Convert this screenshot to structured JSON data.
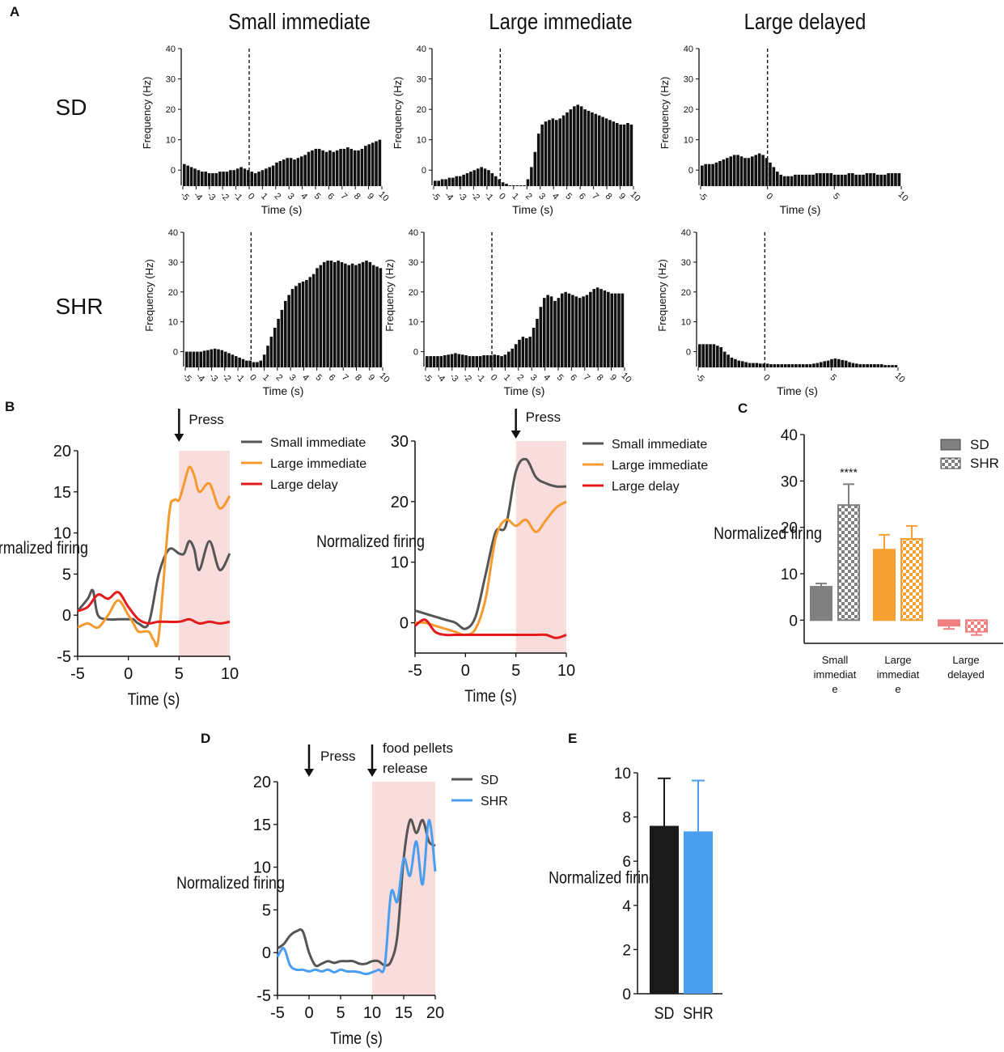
{
  "panel_a": {
    "letter": "A",
    "col_titles": [
      "Small immediate",
      "Large immediate",
      "Large delayed"
    ],
    "row_labels": [
      "SD",
      "SHR"
    ],
    "ylabel": "Frequency (Hz)",
    "xlabel": "Time (s)",
    "yticks": [
      "0",
      "10",
      "20",
      "30",
      "40"
    ],
    "xticks_full": [
      "-5",
      "-4",
      "-3",
      "-2",
      "-1",
      "0",
      "1",
      "2",
      "3",
      "4",
      "5",
      "6",
      "7",
      "8",
      "9",
      "10"
    ],
    "xticks_sparse": [
      "-5",
      "0",
      "5",
      "10"
    ]
  },
  "panel_b": {
    "letter": "B",
    "press_label": "Press"
  },
  "panel_c": {
    "letter": "C",
    "significance": "****"
  },
  "panel_d": {
    "letter": "D",
    "press_label": "Press",
    "food_label_1": "food pellets",
    "food_label_2": "release"
  },
  "panel_e": {
    "letter": "E"
  },
  "colors": {
    "gray": "#555555",
    "orange": "#f59a2e",
    "red": "#e31a1c",
    "blue": "#4a9ef0",
    "black": "#1a1a1a",
    "pink": "#f9dcdc",
    "c_gray": "#808080",
    "c_orange": "#f7a032",
    "c_red": "#f08080"
  },
  "chart_data": [
    {
      "id": "A-SD-small",
      "type": "bar",
      "row": "SD",
      "column": "Small immediate",
      "x_range": [
        -5,
        10
      ],
      "ylim": [
        -5,
        40
      ],
      "values": [
        2,
        1.5,
        1,
        0.5,
        0,
        -0.5,
        -0.5,
        -1,
        -1,
        -1,
        -0.5,
        -0.5,
        -0.5,
        0,
        0,
        0.5,
        1,
        0.5,
        0,
        -0.5,
        -1,
        -0.5,
        0,
        0.5,
        1,
        1.5,
        2.5,
        3,
        3.5,
        4,
        4,
        3.5,
        4,
        4.5,
        5,
        6,
        6.5,
        7,
        7,
        6.5,
        6,
        6.5,
        6,
        6.5,
        7,
        7,
        7.5,
        7,
        6.5,
        6.5,
        7,
        8,
        8.5,
        9,
        9.5,
        10
      ]
    },
    {
      "id": "A-SD-large-imm",
      "type": "bar",
      "row": "SD",
      "column": "Large immediate",
      "x_range": [
        -5,
        10
      ],
      "ylim": [
        -5,
        40
      ],
      "values": [
        -3.5,
        -3.5,
        -3,
        -3,
        -2.5,
        -2.5,
        -2,
        -2,
        -1.5,
        -1,
        -0.5,
        0,
        0.5,
        1,
        0.5,
        0,
        -1,
        -2,
        -3,
        -4,
        -4.5,
        -5,
        -5,
        -5,
        -5,
        -5,
        -3,
        1,
        6,
        12,
        15,
        16,
        16.5,
        17,
        16.5,
        17,
        18,
        19,
        20,
        21,
        21.5,
        21,
        20,
        19.5,
        19,
        18.5,
        18,
        17.5,
        17,
        16.5,
        16,
        15.5,
        15,
        15,
        15.5,
        15
      ]
    },
    {
      "id": "A-SD-large-del",
      "type": "bar",
      "row": "SD",
      "column": "Large delayed",
      "x_range": [
        -5,
        10
      ],
      "ylim": [
        -5,
        40
      ],
      "values": [
        1.5,
        2,
        2,
        2,
        2.5,
        3,
        3.5,
        4,
        4.5,
        5,
        5,
        4.5,
        4,
        4,
        4.5,
        5,
        5.5,
        5,
        4,
        2.5,
        1,
        -0.5,
        -1.5,
        -2,
        -2,
        -2,
        -1.5,
        -1.5,
        -1.5,
        -1.5,
        -1.5,
        -1.5,
        -1,
        -1,
        -1,
        -1,
        -1,
        -1.5,
        -1.5,
        -1.5,
        -1.5,
        -1,
        -1,
        -1.5,
        -1.5,
        -1.5,
        -1,
        -1,
        -1,
        -1.5,
        -1.5,
        -1.5,
        -1,
        -1,
        -1,
        -1
      ]
    },
    {
      "id": "A-SHR-small",
      "type": "bar",
      "row": "SHR",
      "column": "Small immediate",
      "x_range": [
        -5,
        10
      ],
      "ylim": [
        -5,
        40
      ],
      "values": [
        0,
        0,
        0,
        0,
        0,
        0.3,
        0.5,
        0.8,
        1,
        0.8,
        0.5,
        0,
        -0.5,
        -1,
        -1.5,
        -2,
        -2.5,
        -3,
        -3,
        -3.5,
        -3.5,
        -3,
        -1,
        2,
        5,
        8,
        11,
        14,
        17,
        19,
        21,
        22,
        23,
        23.5,
        24,
        25,
        26,
        28,
        29,
        30,
        30.5,
        30.5,
        30,
        30.5,
        30,
        29.5,
        29,
        29.5,
        29,
        29.5,
        30,
        30.5,
        30,
        29,
        28.5,
        28
      ]
    },
    {
      "id": "A-SHR-large-imm",
      "type": "bar",
      "row": "SHR",
      "column": "Large immediate",
      "x_range": [
        -5,
        10
      ],
      "ylim": [
        -5,
        40
      ],
      "values": [
        -1.5,
        -1.5,
        -1.5,
        -1.5,
        -1.5,
        -1.2,
        -1,
        -0.8,
        -0.5,
        -0.8,
        -1,
        -1.2,
        -1.5,
        -1.5,
        -1.5,
        -1.5,
        -1.2,
        -1.2,
        -1.2,
        -1,
        -1.2,
        -1.5,
        -1,
        0,
        1,
        2.5,
        4,
        5,
        4.5,
        5,
        8,
        11,
        15,
        18,
        19,
        18.5,
        17,
        18,
        19.5,
        20,
        19.5,
        19,
        18.5,
        18,
        18.5,
        19,
        20,
        21,
        21.5,
        21,
        20.5,
        20,
        19.5,
        19.5,
        19.5,
        19.5
      ]
    },
    {
      "id": "A-SHR-large-del",
      "type": "bar",
      "row": "SHR",
      "column": "Large delayed",
      "x_range": [
        -5,
        10
      ],
      "ylim": [
        -5,
        40
      ],
      "values": [
        2.5,
        2.5,
        2.5,
        2.5,
        2.5,
        2,
        1.5,
        0,
        -1,
        -2,
        -2.5,
        -3,
        -3.2,
        -3.5,
        -3.8,
        -3.8,
        -3.8,
        -4,
        -4,
        -4,
        -4.2,
        -4.2,
        -4.2,
        -4.2,
        -4.2,
        -4.2,
        -4.2,
        -4.2,
        -4.2,
        -4.2,
        -4.2,
        -4.2,
        -4,
        -3.8,
        -3.5,
        -3.2,
        -3,
        -2.5,
        -2.3,
        -2.5,
        -2.8,
        -3,
        -3.5,
        -3.8,
        -4,
        -4.2,
        -4.2,
        -4.2,
        -4.2,
        -4.2,
        -4.2,
        -4.2,
        -4.5,
        -4.5,
        -4.5,
        -4.5
      ]
    },
    {
      "id": "B-SD",
      "type": "line",
      "xlabel": "Time (s)",
      "ylabel": "Normalized firing",
      "xlim": [
        -5,
        10
      ],
      "ylim": [
        -5,
        20
      ],
      "xticks": [
        "-5",
        "0",
        "5",
        "10"
      ],
      "yticks": [
        "-5",
        "0",
        "5",
        "10",
        "15",
        "20"
      ],
      "shaded_range": [
        5,
        10
      ],
      "series": [
        {
          "name": "Small immediate",
          "x": [
            -5,
            -4,
            -3.5,
            -3,
            -2,
            -1,
            0,
            0.5,
            1,
            2,
            3,
            4,
            5,
            5.5,
            6,
            6.5,
            7,
            8,
            9,
            10
          ],
          "values": [
            0.5,
            2,
            3,
            0,
            -0.5,
            -0.5,
            -0.5,
            -0.5,
            -1,
            -1,
            5,
            8,
            7.5,
            7.5,
            9,
            8,
            5.5,
            9,
            5.5,
            7.5
          ]
        },
        {
          "name": "Large immediate",
          "x": [
            -5,
            -4,
            -3,
            -2,
            -1,
            0,
            0.5,
            1,
            2,
            2.5,
            3,
            4,
            4.5,
            5,
            5.5,
            6,
            6.5,
            7,
            8,
            9,
            10
          ],
          "values": [
            -1.5,
            -1,
            -1.5,
            0,
            1.8,
            0,
            -1,
            -2,
            -2,
            -3,
            -2.5,
            12,
            14,
            14,
            16,
            18,
            17,
            15,
            16,
            13,
            14.5
          ]
        },
        {
          "name": "Large delay",
          "x": [
            -5,
            -4,
            -3,
            -2,
            -1,
            0,
            1,
            2,
            3,
            5,
            6,
            7,
            8,
            9,
            10
          ],
          "values": [
            0.5,
            1,
            2.5,
            2,
            2.8,
            1,
            -0.5,
            -1,
            -0.8,
            -0.8,
            -0.5,
            -1,
            -0.8,
            -1,
            -0.8
          ]
        }
      ]
    },
    {
      "id": "B-SHR",
      "type": "line",
      "xlabel": "Time (s)",
      "ylabel": "Normalized firing",
      "xlim": [
        -5,
        10
      ],
      "ylim": [
        -5,
        30
      ],
      "xticks": [
        "-5",
        "0",
        "5",
        "10"
      ],
      "yticks": [
        "0",
        "10",
        "20",
        "30"
      ],
      "shaded_range": [
        5,
        10
      ],
      "series": [
        {
          "name": "Small immediate",
          "x": [
            -5,
            -4,
            -3,
            -2,
            -1,
            0,
            1,
            2,
            3,
            4,
            5,
            6,
            7,
            8,
            9,
            10
          ],
          "values": [
            2,
            1.5,
            1,
            0.5,
            0,
            -1,
            1,
            8,
            15,
            16,
            25,
            27,
            24,
            23,
            22.5,
            22.5
          ]
        },
        {
          "name": "Large immediate",
          "x": [
            -5,
            -4,
            -3,
            -2,
            -1,
            0,
            1,
            2,
            3,
            4,
            5,
            6,
            7,
            8,
            9,
            10
          ],
          "values": [
            0,
            0,
            -0.5,
            -1,
            -1.5,
            -2,
            -1,
            4,
            14,
            17,
            16,
            17,
            15,
            17,
            19,
            20
          ]
        },
        {
          "name": "Large delay",
          "x": [
            -5,
            -4,
            -3,
            -2,
            -1,
            0,
            1,
            2,
            3,
            4,
            5,
            6,
            7,
            8,
            9,
            10
          ],
          "values": [
            -0.5,
            0.5,
            -1.5,
            -2,
            -2,
            -2,
            -2,
            -2,
            -2,
            -2,
            -2,
            -2,
            -2,
            -2,
            -2.5,
            -2
          ]
        }
      ]
    },
    {
      "id": "C",
      "type": "bar",
      "ylabel": "Normalized firing",
      "ylim": [
        -5,
        40
      ],
      "yticks": [
        "0",
        "10",
        "20",
        "30",
        "40"
      ],
      "categories": [
        [
          "Small",
          "immediat",
          "e"
        ],
        [
          "Large",
          "immediat",
          "e"
        ],
        [
          "Large",
          "delayed"
        ]
      ],
      "legend": [
        "SD",
        "SHR"
      ],
      "series": [
        {
          "name": "SD",
          "values": [
            7.2,
            15.2,
            -1.2
          ],
          "errors": [
            0.7,
            3.2,
            0.7
          ]
        },
        {
          "name": "SHR",
          "values": [
            24.8,
            17.5,
            -2.5
          ],
          "errors": [
            4.5,
            2.8,
            0.7
          ]
        }
      ]
    },
    {
      "id": "D",
      "type": "line",
      "xlabel": "Time (s)",
      "ylabel": "Normalized firing",
      "xlim": [
        -5,
        20
      ],
      "ylim": [
        -5,
        20
      ],
      "xticks": [
        "-5",
        "0",
        "5",
        "10",
        "15",
        "20"
      ],
      "yticks": [
        "-5",
        "0",
        "5",
        "10",
        "15",
        "20"
      ],
      "shaded_range": [
        10,
        20
      ],
      "series": [
        {
          "name": "SD",
          "x": [
            -5,
            -4,
            -3,
            -2,
            -1,
            0,
            1,
            2,
            3,
            4,
            5,
            6,
            7,
            8,
            9,
            10,
            11,
            12,
            13,
            14,
            15,
            16,
            17,
            18,
            19,
            20
          ],
          "values": [
            0.5,
            1,
            2,
            2.5,
            2.5,
            0,
            -1.5,
            -1.3,
            -1,
            -1.2,
            -1,
            -1,
            -1,
            -1.3,
            -1.3,
            -1,
            -1,
            -1.5,
            -1,
            2,
            11,
            15.5,
            14,
            15.5,
            13,
            12.5
          ]
        },
        {
          "name": "SHR",
          "x": [
            -5,
            -4,
            -3,
            -2,
            -1,
            0,
            1,
            2,
            3,
            4,
            5,
            6,
            7,
            8,
            9,
            10,
            11,
            12,
            13,
            14,
            15,
            16,
            17,
            18,
            19,
            20
          ],
          "values": [
            -0.5,
            0.5,
            -1.5,
            -2,
            -2,
            -2.2,
            -2,
            -2.2,
            -2,
            -2.3,
            -2,
            -2.2,
            -2.2,
            -2.3,
            -2.5,
            -2.3,
            -2,
            -1.5,
            7,
            6,
            11,
            9,
            13,
            8,
            15.5,
            9.5
          ]
        }
      ]
    },
    {
      "id": "E",
      "type": "bar",
      "ylabel": "Normalized firing",
      "ylim": [
        0,
        10
      ],
      "yticks": [
        "0",
        "2",
        "4",
        "6",
        "8",
        "10"
      ],
      "categories": [
        "SD",
        "SHR"
      ],
      "values": [
        7.6,
        7.35
      ],
      "errors": [
        2.15,
        2.3
      ]
    }
  ]
}
